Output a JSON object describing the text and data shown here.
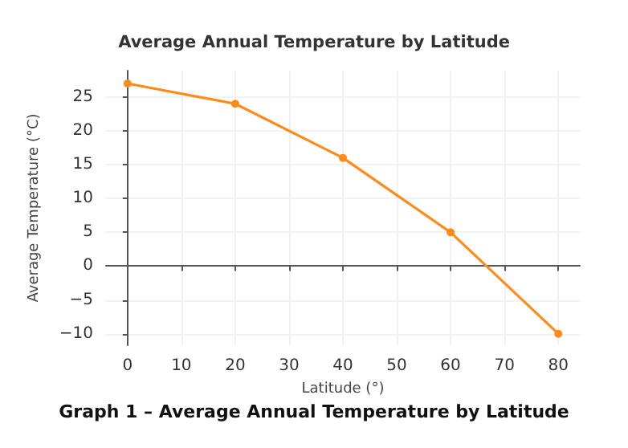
{
  "chart_data": {
    "type": "line",
    "title": "Average Annual Temperature by Latitude",
    "xlabel": "Latitude (°)",
    "ylabel": "Average Temperature (°C)",
    "annotations": [
      "Graph 1 – Average Annual Temperature by Latitude"
    ],
    "x": [
      0,
      20,
      40,
      60,
      80
    ],
    "series": [
      {
        "color": "#ff8c1a",
        "values": [
          27,
          24,
          16,
          5,
          -10
        ]
      }
    ],
    "xlim": [
      -4,
      84
    ],
    "xticks": [
      0,
      10,
      20,
      30,
      40,
      50,
      60,
      70,
      80
    ],
    "ylim": [
      -11.7,
      28.9
    ],
    "yticks": [
      -10,
      -5,
      0,
      5,
      10,
      15,
      20,
      25
    ],
    "grid": true,
    "marker": "circle",
    "line_style": "solid"
  }
}
